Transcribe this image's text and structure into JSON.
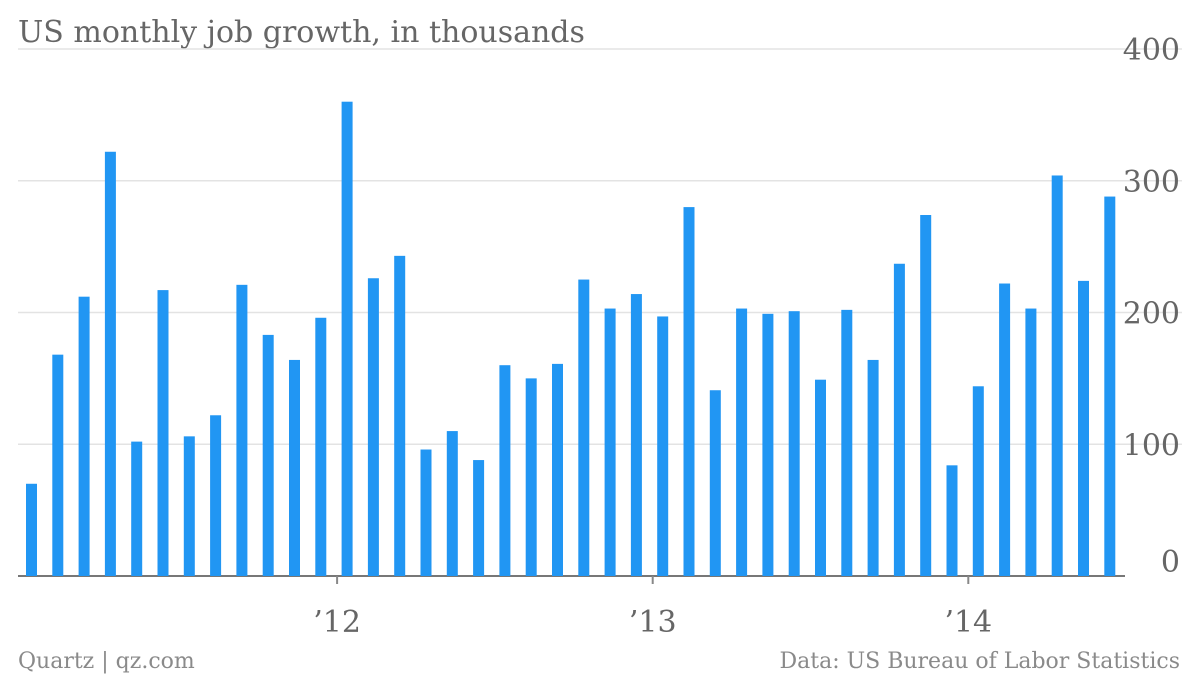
{
  "chart_data": {
    "type": "bar",
    "title": "US monthly job growth, in thousands",
    "xlabel": "",
    "ylabel": "",
    "ylim": [
      0,
      400
    ],
    "y_ticks": [
      0,
      100,
      200,
      300,
      400
    ],
    "y_axis_position": "right",
    "grid": true,
    "bar_color": "#2196f3",
    "x_tick_labels": [
      {
        "label": "’12",
        "month": "2012-01"
      },
      {
        "label": "’13",
        "month": "2013-01"
      },
      {
        "label": "’14",
        "month": "2014-01"
      }
    ],
    "categories": [
      "2011-01",
      "2011-02",
      "2011-03",
      "2011-04",
      "2011-05",
      "2011-06",
      "2011-07",
      "2011-08",
      "2011-09",
      "2011-10",
      "2011-11",
      "2011-12",
      "2012-01",
      "2012-02",
      "2012-03",
      "2012-04",
      "2012-05",
      "2012-06",
      "2012-07",
      "2012-08",
      "2012-09",
      "2012-10",
      "2012-11",
      "2012-12",
      "2013-01",
      "2013-02",
      "2013-03",
      "2013-04",
      "2013-05",
      "2013-06",
      "2013-07",
      "2013-08",
      "2013-09",
      "2013-10",
      "2013-11",
      "2013-12",
      "2014-01",
      "2014-02",
      "2014-03",
      "2014-04",
      "2014-05",
      "2014-06"
    ],
    "values": [
      70,
      168,
      212,
      322,
      102,
      217,
      106,
      122,
      221,
      183,
      164,
      196,
      360,
      226,
      243,
      96,
      110,
      88,
      160,
      150,
      161,
      225,
      203,
      214,
      197,
      280,
      141,
      203,
      199,
      201,
      149,
      202,
      164,
      237,
      274,
      84,
      144,
      222,
      203,
      304,
      224,
      288
    ]
  },
  "footer": {
    "source_left": "Quartz | qz.com",
    "source_right": "Data: US Bureau of Labor Statistics"
  }
}
